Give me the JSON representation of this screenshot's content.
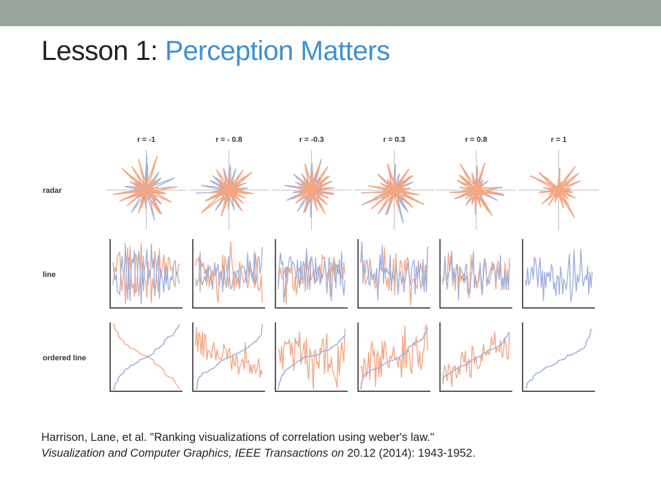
{
  "slide": {
    "title_prefix": "Lesson 1: ",
    "title_accent": "Perception Matters",
    "colors": {
      "topbar": "#97a59a",
      "accent": "#3f8fd2",
      "orange": "#f4a582",
      "blue": "#9fb0dc",
      "axis": "#222222"
    }
  },
  "figure": {
    "columns": [
      "r = -1",
      "r = - 0.8",
      "r = -0.3",
      "r = 0.3",
      "r = 0.8",
      "r = 1"
    ],
    "correlations": [
      -1,
      -0.8,
      -0.3,
      0.3,
      0.8,
      1
    ],
    "rows": [
      "radar",
      "line",
      "ordered line"
    ],
    "series": [
      "orange",
      "blue"
    ]
  },
  "citation": {
    "line1": "Harrison, Lane, et al. \"Ranking visualizations of correlation using weber's law.\"",
    "venue": "Visualization and Computer Graphics, IEEE Transactions on",
    "details": " 20.12 (2014): 1943-1952."
  }
}
